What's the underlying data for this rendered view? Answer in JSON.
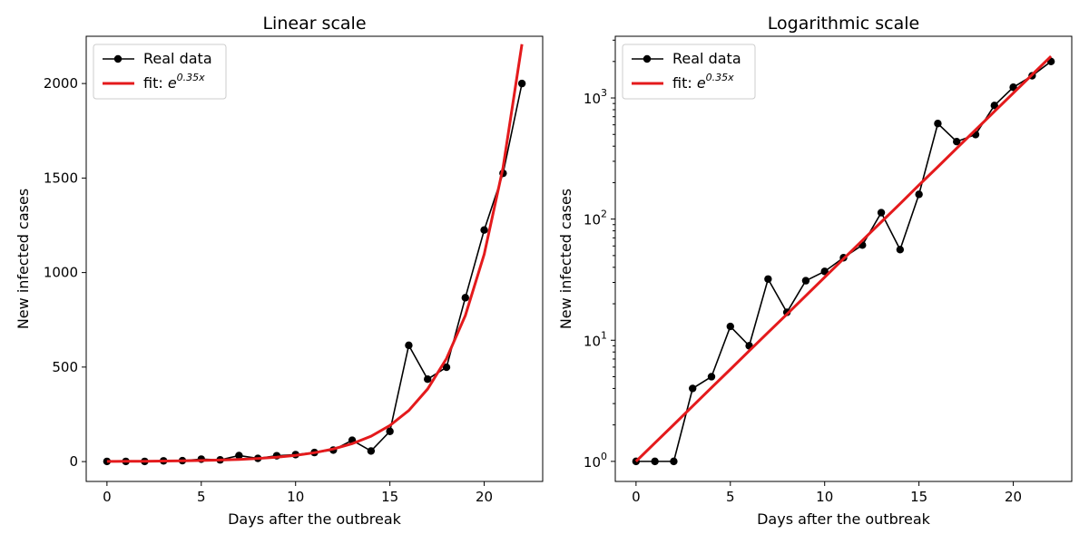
{
  "colors": {
    "real_data": "#000000",
    "fit": "#e41a1c"
  },
  "chart_data": [
    {
      "type": "line",
      "title": "Linear scale",
      "xlabel": "Days after the outbreak",
      "ylabel": "New infected cases",
      "yscale": "linear",
      "xlim": [
        -1.1,
        23.1
      ],
      "ylim": [
        -105,
        2250
      ],
      "xticks": [
        0,
        5,
        10,
        15,
        20
      ],
      "yticks": [
        0,
        500,
        1000,
        1500,
        2000
      ],
      "legend": "upper left",
      "legend_entries": [
        {
          "label": "Real data",
          "marker": "circle"
        },
        {
          "label_prefix": "fit: ",
          "label_base": "e",
          "label_exponent": "0.35x",
          "marker": "none"
        }
      ],
      "series": [
        {
          "name": "Real data",
          "x": [
            0,
            1,
            2,
            3,
            4,
            5,
            6,
            7,
            8,
            9,
            10,
            11,
            12,
            13,
            14,
            15,
            16,
            17,
            18,
            19,
            20,
            21,
            22
          ],
          "values": [
            1,
            1,
            1,
            4,
            5,
            13,
            9,
            32,
            17,
            31,
            37,
            48,
            61,
            113,
            56,
            160,
            615,
            436,
            499,
            867,
            1225,
            1525,
            2000
          ]
        },
        {
          "name": "fit: e^0.35x",
          "x": [
            0,
            1,
            2,
            3,
            4,
            5,
            6,
            7,
            8,
            9,
            10,
            11,
            12,
            13,
            14,
            15,
            16,
            17,
            18,
            19,
            20,
            21,
            22
          ],
          "values": [
            1,
            1.42,
            2.01,
            2.86,
            4.06,
            5.75,
            8.17,
            11.6,
            16.4,
            23.3,
            33.1,
            47.0,
            66.7,
            94.6,
            134,
            191,
            270,
            384,
            545,
            773,
            1097,
            1556,
            2208
          ]
        }
      ]
    },
    {
      "type": "line",
      "title": "Logarithmic scale",
      "xlabel": "Days after the outbreak",
      "ylabel": "New infected cases",
      "yscale": "log",
      "xlim": [
        -1.1,
        23.1
      ],
      "ylim": [
        0.683,
        3230
      ],
      "xticks": [
        0,
        5,
        10,
        15,
        20
      ],
      "yticks": [
        1,
        10,
        100,
        1000
      ],
      "ytick_labels": [
        {
          "base": "10",
          "exponent": "0"
        },
        {
          "base": "10",
          "exponent": "1"
        },
        {
          "base": "10",
          "exponent": "2"
        },
        {
          "base": "10",
          "exponent": "3"
        }
      ],
      "legend": "upper left",
      "legend_entries": [
        {
          "label": "Real data",
          "marker": "circle"
        },
        {
          "label_prefix": "fit: ",
          "label_base": "e",
          "label_exponent": "0.35x",
          "marker": "none"
        }
      ],
      "series": [
        {
          "name": "Real data",
          "x": [
            0,
            1,
            2,
            3,
            4,
            5,
            6,
            7,
            8,
            9,
            10,
            11,
            12,
            13,
            14,
            15,
            16,
            17,
            18,
            19,
            20,
            21,
            22
          ],
          "values": [
            1,
            1,
            1,
            4,
            5,
            13,
            9,
            32,
            17,
            31,
            37,
            48,
            61,
            113,
            56,
            160,
            615,
            436,
            499,
            867,
            1225,
            1525,
            2000
          ]
        },
        {
          "name": "fit: e^0.35x",
          "x": [
            0,
            1,
            2,
            3,
            4,
            5,
            6,
            7,
            8,
            9,
            10,
            11,
            12,
            13,
            14,
            15,
            16,
            17,
            18,
            19,
            20,
            21,
            22
          ],
          "values": [
            1,
            1.42,
            2.01,
            2.86,
            4.06,
            5.75,
            8.17,
            11.6,
            16.4,
            23.3,
            33.1,
            47.0,
            66.7,
            94.6,
            134,
            191,
            270,
            384,
            545,
            773,
            1097,
            1556,
            2208
          ]
        }
      ]
    }
  ]
}
